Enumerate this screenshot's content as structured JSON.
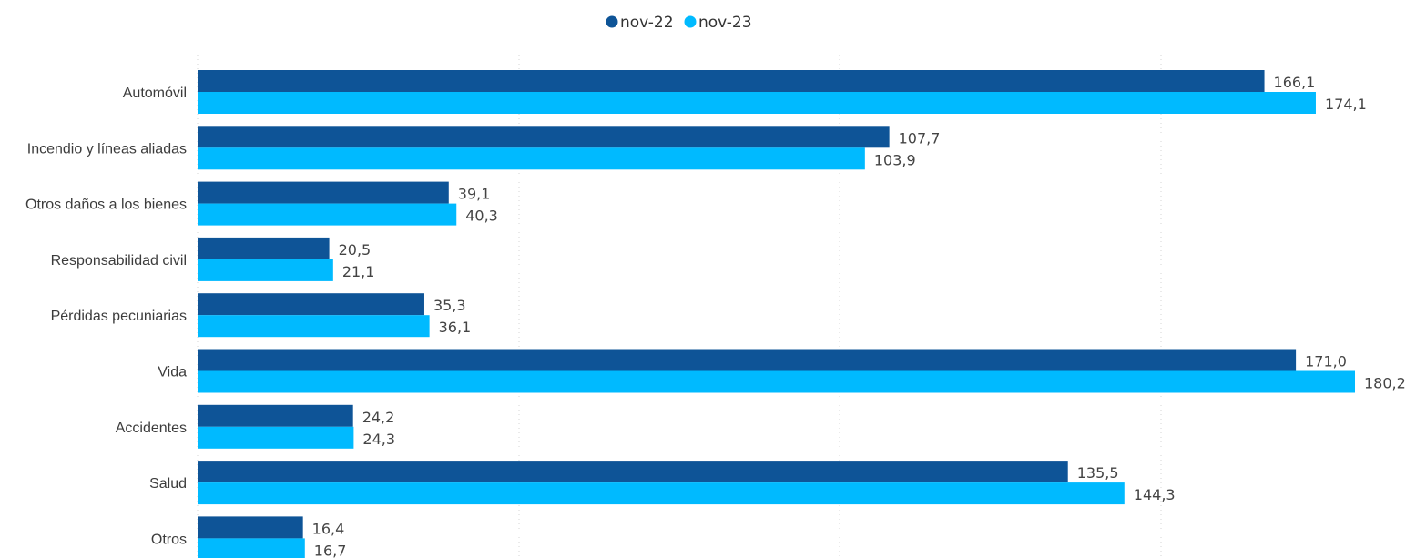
{
  "colors": {
    "series_1": "#0E5497",
    "series_2": "#00BAFF"
  },
  "chart_data": {
    "type": "bar",
    "orientation": "horizontal",
    "categories": [
      "Automóvil",
      "Incendio y líneas aliadas",
      "Otros daños a los bienes",
      "Responsabilidad civil",
      "Pérdidas pecuniarias",
      "Vida",
      "Accidentes",
      "Salud",
      "Otros"
    ],
    "series": [
      {
        "name": "nov-22",
        "values": [
          166.1,
          107.7,
          39.1,
          20.5,
          35.3,
          171.0,
          24.2,
          135.5,
          16.4
        ],
        "labels": [
          "166,1",
          "107,7",
          "39,1",
          "20,5",
          "35,3",
          "171,0",
          "24,2",
          "135,5",
          "16,4"
        ]
      },
      {
        "name": "nov-23",
        "values": [
          174.1,
          103.9,
          40.3,
          21.1,
          36.1,
          180.2,
          24.3,
          144.3,
          16.7
        ],
        "labels": [
          "174,1",
          "103,9",
          "40,3",
          "21,1",
          "36,1",
          "180,2",
          "24,3",
          "144,3",
          "16,7"
        ]
      }
    ],
    "xlim": [
      0,
      180.2
    ],
    "grid": true,
    "legend_position": "top-center"
  }
}
